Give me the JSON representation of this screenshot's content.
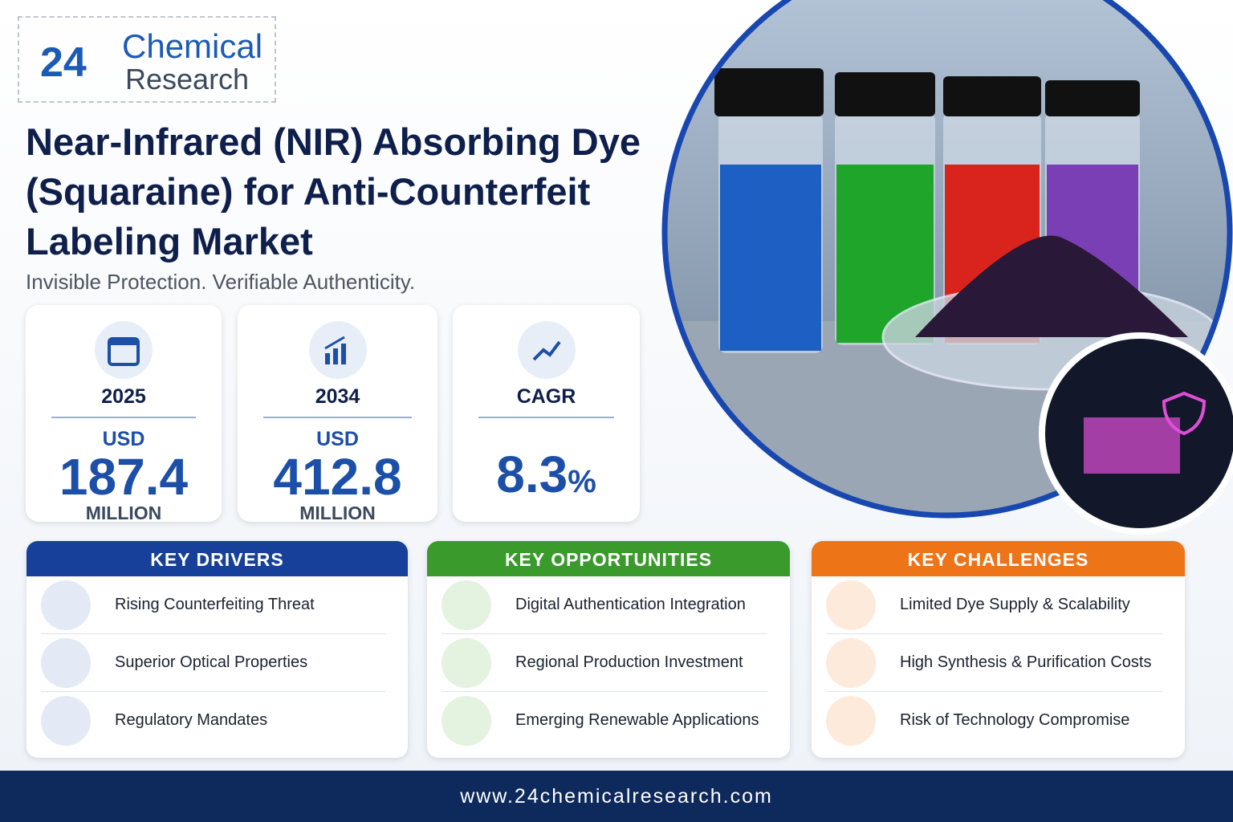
{
  "logo": {
    "number": "24",
    "line1": "Chemical",
    "line2": "Research"
  },
  "title": "Near-Infrared (NIR) Absorbing Dye (Squaraine) for Anti-Counterfeit Labeling Market",
  "subtitle": "Invisible Protection. Verifiable Authenticity.",
  "stats": [
    {
      "label": "2025",
      "prefix": "USD",
      "value": "187.4",
      "unit": "MILLION"
    },
    {
      "label": "2034",
      "prefix": "USD",
      "value": "412.8",
      "unit": "MILLION"
    },
    {
      "label": "CAGR",
      "value": "8.3",
      "suffix": "%"
    }
  ],
  "panels": [
    {
      "title": "KEY DRIVERS",
      "items": [
        "Rising Counterfeiting Threat",
        "Superior Optical Properties",
        "Regulatory Mandates"
      ]
    },
    {
      "title": "KEY OPPORTUNITIES",
      "items": [
        "Digital Authentication Integration",
        "Regional Production Investment",
        "Emerging Renewable Applications"
      ]
    },
    {
      "title": "KEY CHALLENGES",
      "items": [
        "Limited Dye Supply & Scalability",
        "High Synthesis & Purification Costs",
        "Risk of Technology Compromise"
      ]
    }
  ],
  "footer": "www.24chemicalresearch.com"
}
